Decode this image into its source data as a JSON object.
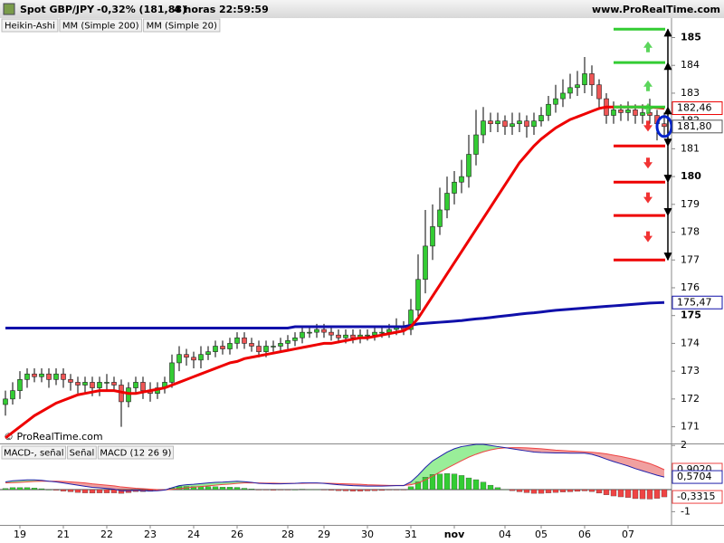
{
  "header": {
    "symbol": "Spot GBP/JPY",
    "change": "-0,32% (181,88)",
    "period": "4 horas",
    "time": "22:59:59",
    "site": "www.ProRealTime.com"
  },
  "chart_data": [
    {
      "type": "candlestick",
      "title": "Spot GBP/JPY",
      "chart_style": "Heikin-Ashi",
      "watermark": "© ProRealTime.com",
      "categories": [
        null,
        null,
        "19",
        null,
        null,
        null,
        null,
        null,
        "21",
        null,
        null,
        null,
        null,
        null,
        "22",
        null,
        null,
        null,
        null,
        null,
        "23",
        null,
        null,
        null,
        null,
        null,
        "24",
        null,
        null,
        null,
        null,
        null,
        "26",
        null,
        null,
        null,
        null,
        null,
        null,
        "28",
        null,
        null,
        null,
        null,
        "29",
        null,
        null,
        null,
        null,
        null,
        "30",
        null,
        null,
        null,
        null,
        null,
        "31",
        null,
        null,
        null,
        null,
        null,
        "nov",
        null,
        null,
        null,
        null,
        null,
        null,
        "04",
        null,
        null,
        null,
        null,
        "05",
        null,
        null,
        null,
        null,
        null,
        "06",
        null,
        null,
        null,
        null,
        null,
        "07",
        null,
        null,
        null,
        null,
        null
      ],
      "open": [
        171.8,
        172.0,
        172.3,
        172.7,
        172.9,
        172.8,
        172.9,
        172.7,
        172.9,
        172.7,
        172.6,
        172.5,
        172.6,
        172.4,
        172.6,
        172.6,
        172.5,
        171.9,
        172.4,
        172.6,
        172.3,
        172.2,
        172.4,
        172.6,
        173.3,
        173.6,
        173.5,
        173.4,
        173.6,
        173.7,
        173.9,
        173.8,
        174.0,
        174.2,
        174.0,
        173.9,
        173.7,
        173.9,
        173.9,
        174.0,
        174.1,
        174.2,
        174.4,
        174.4,
        174.5,
        174.4,
        174.3,
        174.2,
        174.3,
        174.2,
        174.3,
        174.3,
        174.4,
        174.4,
        174.5,
        174.6,
        174.5,
        175.2,
        176.3,
        177.5,
        178.2,
        178.8,
        179.4,
        179.8,
        180.0,
        180.8,
        181.5,
        182.0,
        181.9,
        182.0,
        181.8,
        181.9,
        182.0,
        181.8,
        182.0,
        182.2,
        182.6,
        182.8,
        183.0,
        183.2,
        183.3,
        183.7,
        183.3,
        182.8,
        182.2,
        182.4,
        182.3,
        182.4,
        182.2,
        182.3,
        182.2,
        181.9
      ],
      "high": [
        172.3,
        172.6,
        173.0,
        173.1,
        173.1,
        173.1,
        173.1,
        173.1,
        173.1,
        172.9,
        172.8,
        172.8,
        172.8,
        172.8,
        172.9,
        172.8,
        172.7,
        172.6,
        172.8,
        172.8,
        172.6,
        172.6,
        172.8,
        173.6,
        173.9,
        173.8,
        173.7,
        173.9,
        173.9,
        174.1,
        174.1,
        174.2,
        174.4,
        174.4,
        174.2,
        174.1,
        174.1,
        174.1,
        174.2,
        174.3,
        174.4,
        174.6,
        174.6,
        174.7,
        174.7,
        174.6,
        174.5,
        174.5,
        174.5,
        174.5,
        174.5,
        174.6,
        174.6,
        174.7,
        174.9,
        174.8,
        175.6,
        177.2,
        178.8,
        179.0,
        179.6,
        180.0,
        180.2,
        180.6,
        181.5,
        182.4,
        182.5,
        182.3,
        182.3,
        182.2,
        182.3,
        182.3,
        182.2,
        182.3,
        182.5,
        182.9,
        183.3,
        183.5,
        183.7,
        183.8,
        184.3,
        184.0,
        183.5,
        183.0,
        182.7,
        182.6,
        182.7,
        182.6,
        182.6,
        182.8,
        182.4,
        182.3
      ],
      "low": [
        171.4,
        171.8,
        172.0,
        172.4,
        172.6,
        172.6,
        172.4,
        172.5,
        172.4,
        172.3,
        172.2,
        172.2,
        172.1,
        172.1,
        172.3,
        172.3,
        171.0,
        171.7,
        172.2,
        172.0,
        171.9,
        172.0,
        172.2,
        172.4,
        173.0,
        173.2,
        173.1,
        173.1,
        173.4,
        173.5,
        173.6,
        173.6,
        173.8,
        173.8,
        173.7,
        173.5,
        173.5,
        173.7,
        173.7,
        173.8,
        173.9,
        174.0,
        174.2,
        174.2,
        174.2,
        174.1,
        174.0,
        174.0,
        174.0,
        174.0,
        174.1,
        174.1,
        174.2,
        174.2,
        174.3,
        174.3,
        174.3,
        174.9,
        175.8,
        177.0,
        177.9,
        178.5,
        179.0,
        179.4,
        179.6,
        180.4,
        181.2,
        181.6,
        181.6,
        181.5,
        181.5,
        181.6,
        181.4,
        181.5,
        181.8,
        182.0,
        182.3,
        182.5,
        182.8,
        182.9,
        183.0,
        182.9,
        182.4,
        181.9,
        181.9,
        182.0,
        182.0,
        181.9,
        181.9,
        181.9,
        181.3,
        181.4
      ],
      "close": [
        172.0,
        172.3,
        172.7,
        172.9,
        172.8,
        172.9,
        172.7,
        172.9,
        172.7,
        172.6,
        172.5,
        172.6,
        172.4,
        172.6,
        172.6,
        172.5,
        171.9,
        172.4,
        172.6,
        172.3,
        172.2,
        172.4,
        172.6,
        173.3,
        173.6,
        173.5,
        173.4,
        173.6,
        173.7,
        173.9,
        173.8,
        174.0,
        174.2,
        174.0,
        173.9,
        173.7,
        173.9,
        173.9,
        174.0,
        174.1,
        174.2,
        174.4,
        174.4,
        174.5,
        174.4,
        174.3,
        174.2,
        174.3,
        174.2,
        174.3,
        174.3,
        174.4,
        174.4,
        174.5,
        174.6,
        174.5,
        175.2,
        176.3,
        177.5,
        178.2,
        178.8,
        179.4,
        179.8,
        180.0,
        180.8,
        181.5,
        182.0,
        181.9,
        182.0,
        181.8,
        181.9,
        182.0,
        181.8,
        182.0,
        182.2,
        182.6,
        182.8,
        183.0,
        183.2,
        183.3,
        183.7,
        183.3,
        182.8,
        182.2,
        182.4,
        182.3,
        182.4,
        182.2,
        182.3,
        182.2,
        181.9,
        181.8
      ],
      "up_color": "#33cc33",
      "down_color": "#ee5555",
      "series": [
        {
          "name": "MM (Simple 200)",
          "color": "#1010aa",
          "values": [
            174.55,
            174.55,
            174.55,
            174.55,
            174.55,
            174.55,
            174.55,
            174.55,
            174.55,
            174.55,
            174.55,
            174.55,
            174.55,
            174.55,
            174.55,
            174.55,
            174.55,
            174.55,
            174.55,
            174.55,
            174.55,
            174.55,
            174.55,
            174.55,
            174.55,
            174.55,
            174.55,
            174.55,
            174.55,
            174.55,
            174.55,
            174.55,
            174.55,
            174.55,
            174.55,
            174.55,
            174.55,
            174.55,
            174.55,
            174.55,
            174.6,
            174.6,
            174.6,
            174.6,
            174.6,
            174.6,
            174.6,
            174.6,
            174.6,
            174.6,
            174.6,
            174.6,
            174.6,
            174.6,
            174.6,
            174.6,
            174.65,
            174.7,
            174.72,
            174.74,
            174.76,
            174.78,
            174.8,
            174.82,
            174.85,
            174.88,
            174.9,
            174.93,
            174.96,
            174.99,
            175.02,
            175.05,
            175.08,
            175.1,
            175.13,
            175.16,
            175.19,
            175.21,
            175.23,
            175.25,
            175.27,
            175.29,
            175.31,
            175.33,
            175.35,
            175.37,
            175.39,
            175.41,
            175.43,
            175.45,
            175.46,
            175.47
          ]
        },
        {
          "name": "MM (Simple 20)",
          "color": "#ee0000",
          "values": [
            170.6,
            170.8,
            171.0,
            171.2,
            171.4,
            171.55,
            171.7,
            171.85,
            171.95,
            172.05,
            172.15,
            172.2,
            172.25,
            172.3,
            172.3,
            172.3,
            172.25,
            172.2,
            172.2,
            172.25,
            172.3,
            172.35,
            172.4,
            172.5,
            172.6,
            172.7,
            172.8,
            172.9,
            173.0,
            173.1,
            173.2,
            173.3,
            173.35,
            173.45,
            173.5,
            173.55,
            173.6,
            173.65,
            173.7,
            173.75,
            173.8,
            173.85,
            173.9,
            173.95,
            174.0,
            174.0,
            174.05,
            174.1,
            174.15,
            174.2,
            174.2,
            174.25,
            174.3,
            174.35,
            174.4,
            174.45,
            174.6,
            174.9,
            175.3,
            175.7,
            176.1,
            176.5,
            176.9,
            177.3,
            177.7,
            178.1,
            178.5,
            178.9,
            179.3,
            179.7,
            180.1,
            180.5,
            180.8,
            181.1,
            181.35,
            181.55,
            181.75,
            181.9,
            182.05,
            182.15,
            182.25,
            182.35,
            182.45,
            182.5,
            182.5,
            182.5,
            182.5,
            182.5,
            182.5,
            182.5,
            182.48,
            182.46
          ]
        }
      ],
      "levels": [
        {
          "value": 185.3,
          "color": "#33cc33"
        },
        {
          "value": 184.1,
          "color": "#33cc33"
        },
        {
          "value": 182.5,
          "color": "#33cc33"
        },
        {
          "value": 181.1,
          "color": "#ee0000"
        },
        {
          "value": 179.8,
          "color": "#ee0000"
        },
        {
          "value": 178.6,
          "color": "#ee0000"
        },
        {
          "value": 177.0,
          "color": "#ee0000"
        }
      ],
      "ylim": [
        170.4,
        185.7
      ],
      "yticks": [
        171,
        172,
        173,
        174,
        175,
        176,
        177,
        178,
        179,
        180,
        181,
        182,
        183,
        184,
        185
      ],
      "last_labels": [
        {
          "value": 182.46,
          "label": "182,46",
          "color": "#ee0000"
        },
        {
          "value": 181.8,
          "label": "181,80",
          "color": "#555555"
        },
        {
          "value": 175.47,
          "label": "175,47",
          "color": "#1010aa"
        }
      ]
    },
    {
      "type": "macd",
      "series": [
        {
          "name": "MACD-, señal",
          "kind": "histogram",
          "color": "#33cc33",
          "negative_color": "#ee4444",
          "values": [
            0.05,
            0.09,
            0.09,
            0.09,
            0.07,
            0.04,
            0.0,
            -0.03,
            -0.07,
            -0.1,
            -0.13,
            -0.15,
            -0.16,
            -0.15,
            -0.15,
            -0.15,
            -0.17,
            -0.14,
            -0.09,
            -0.09,
            -0.08,
            -0.05,
            -0.01,
            0.07,
            0.14,
            0.14,
            0.13,
            0.13,
            0.13,
            0.13,
            0.11,
            0.11,
            0.1,
            0.06,
            0.03,
            -0.02,
            -0.02,
            -0.03,
            -0.02,
            -0.01,
            0.0,
            0.02,
            0.01,
            0.01,
            -0.01,
            -0.03,
            -0.05,
            -0.06,
            -0.07,
            -0.07,
            -0.06,
            -0.05,
            -0.04,
            -0.02,
            -0.01,
            -0.01,
            0.13,
            0.35,
            0.56,
            0.69,
            0.71,
            0.73,
            0.71,
            0.64,
            0.53,
            0.45,
            0.34,
            0.2,
            0.09,
            0.01,
            -0.05,
            -0.1,
            -0.14,
            -0.17,
            -0.17,
            -0.15,
            -0.13,
            -0.11,
            -0.1,
            -0.08,
            -0.06,
            -0.09,
            -0.16,
            -0.24,
            -0.29,
            -0.33,
            -0.36,
            -0.41,
            -0.42,
            -0.43,
            -0.4,
            -0.3315
          ]
        },
        {
          "name": "Señal",
          "color": "#ee4444",
          "values": [
            0.3,
            0.31,
            0.33,
            0.35,
            0.37,
            0.38,
            0.38,
            0.38,
            0.37,
            0.35,
            0.33,
            0.3,
            0.26,
            0.23,
            0.2,
            0.17,
            0.12,
            0.09,
            0.06,
            0.04,
            0.02,
            0.0,
            -0.01,
            0.01,
            0.04,
            0.08,
            0.11,
            0.14,
            0.17,
            0.2,
            0.23,
            0.25,
            0.28,
            0.3,
            0.3,
            0.3,
            0.29,
            0.29,
            0.28,
            0.28,
            0.28,
            0.28,
            0.29,
            0.29,
            0.29,
            0.28,
            0.27,
            0.26,
            0.25,
            0.24,
            0.22,
            0.21,
            0.2,
            0.19,
            0.19,
            0.19,
            0.22,
            0.3,
            0.44,
            0.61,
            0.79,
            0.97,
            1.14,
            1.31,
            1.47,
            1.6,
            1.71,
            1.8,
            1.86,
            1.89,
            1.9,
            1.9,
            1.89,
            1.87,
            1.85,
            1.82,
            1.79,
            1.77,
            1.75,
            1.73,
            1.71,
            1.69,
            1.66,
            1.62,
            1.56,
            1.5,
            1.43,
            1.36,
            1.27,
            1.18,
            1.05,
            0.902
          ]
        },
        {
          "name": "MACD (12 26 9)",
          "color": "#2020aa",
          "values": [
            0.35,
            0.4,
            0.42,
            0.44,
            0.44,
            0.42,
            0.38,
            0.35,
            0.3,
            0.25,
            0.2,
            0.15,
            0.1,
            0.08,
            0.05,
            0.02,
            -0.05,
            -0.05,
            -0.03,
            -0.05,
            -0.06,
            -0.05,
            -0.02,
            0.08,
            0.18,
            0.22,
            0.24,
            0.27,
            0.3,
            0.33,
            0.34,
            0.36,
            0.38,
            0.36,
            0.33,
            0.28,
            0.27,
            0.26,
            0.26,
            0.27,
            0.28,
            0.3,
            0.3,
            0.3,
            0.28,
            0.25,
            0.22,
            0.2,
            0.18,
            0.17,
            0.16,
            0.16,
            0.16,
            0.17,
            0.18,
            0.18,
            0.35,
            0.65,
            1.0,
            1.3,
            1.5,
            1.7,
            1.85,
            1.95,
            2.0,
            2.05,
            2.05,
            2.0,
            1.95,
            1.9,
            1.85,
            1.8,
            1.75,
            1.7,
            1.68,
            1.67,
            1.66,
            1.66,
            1.65,
            1.65,
            1.65,
            1.6,
            1.5,
            1.38,
            1.27,
            1.17,
            1.07,
            0.95,
            0.85,
            0.75,
            0.65,
            0.5704
          ]
        }
      ],
      "ylim": [
        -1.6,
        2.05
      ],
      "yticks": [
        2,
        -1
      ],
      "last_labels": [
        {
          "value": 0.902,
          "label": "0,9020",
          "color": "#ee4444"
        },
        {
          "value": 0.5704,
          "label": "0,5704",
          "color": "#2020aa"
        },
        {
          "value": -0.3315,
          "label": "-0,3315",
          "color": "#ee4444"
        }
      ]
    }
  ]
}
